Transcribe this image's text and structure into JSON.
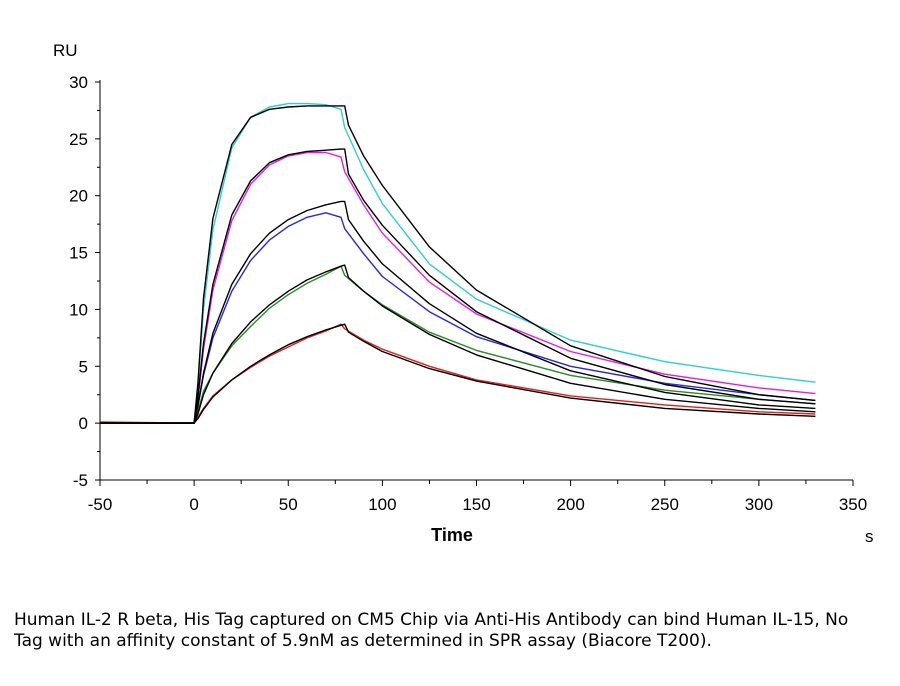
{
  "caption": "Human IL-2 R beta, His Tag captured on CM5 Chip via Anti-His Antibody can bind Human IL-15, No Tag with an affinity constant of 5.9nM as determined in SPR assay (Biacore T200).",
  "chart_data": {
    "type": "line",
    "title": "",
    "xlabel": "Time",
    "xunit": "s",
    "ylabel": "",
    "yunit": "RU",
    "xlim": [
      -50,
      350
    ],
    "ylim": [
      -5,
      30
    ],
    "xticks": [
      -50,
      0,
      50,
      100,
      150,
      200,
      250,
      300,
      350
    ],
    "yticks": [
      -5,
      0,
      5,
      10,
      15,
      20,
      25,
      30
    ],
    "grid": false,
    "legend": "none",
    "series": [
      {
        "color": "#2ccfd2",
        "x": [
          -50,
          0,
          2,
          5,
          10,
          20,
          30,
          40,
          50,
          60,
          70,
          78,
          80,
          90,
          100,
          125,
          150,
          200,
          250,
          300,
          330
        ],
        "y": [
          0,
          0,
          3,
          10,
          17,
          24.2,
          26.9,
          27.8,
          28.1,
          28.1,
          28.0,
          27.6,
          26.0,
          22.3,
          19.3,
          14.0,
          10.9,
          7.3,
          5.4,
          4.2,
          3.6
        ]
      },
      {
        "color": "#e020e0",
        "x": [
          -50,
          0,
          2,
          5,
          10,
          20,
          30,
          40,
          50,
          60,
          70,
          78,
          80,
          90,
          100,
          125,
          150,
          200,
          250,
          300,
          330
        ],
        "y": [
          0,
          0,
          2,
          6.5,
          11.7,
          17.8,
          21.0,
          22.7,
          23.5,
          23.8,
          23.8,
          23.4,
          22.1,
          19.2,
          16.7,
          12.4,
          9.6,
          6.3,
          4.3,
          3.1,
          2.6
        ]
      },
      {
        "color": "#2828e0",
        "x": [
          -50,
          0,
          2,
          5,
          10,
          20,
          30,
          40,
          50,
          60,
          70,
          78,
          80,
          90,
          100,
          125,
          150,
          200,
          250,
          300,
          330
        ],
        "y": [
          0,
          0,
          1.5,
          4.2,
          7.5,
          11.6,
          14.3,
          16.1,
          17.3,
          18.1,
          18.5,
          18.1,
          17.1,
          14.9,
          12.9,
          9.8,
          7.6,
          5.0,
          3.5,
          2.5,
          2.0
        ]
      },
      {
        "color": "#2a8a2a",
        "x": [
          -50,
          0,
          2,
          5,
          10,
          20,
          30,
          40,
          50,
          60,
          70,
          78,
          80,
          90,
          100,
          125,
          150,
          200,
          250,
          300,
          330
        ],
        "y": [
          0,
          0,
          1,
          2.8,
          4.4,
          6.8,
          8.5,
          10.1,
          11.3,
          12.3,
          13.1,
          13.8,
          13.0,
          11.6,
          10.4,
          8.0,
          6.4,
          4.2,
          2.9,
          2.1,
          1.7
        ]
      },
      {
        "color": "#e02020",
        "x": [
          -50,
          0,
          2,
          5,
          10,
          20,
          30,
          40,
          50,
          60,
          70,
          78,
          80,
          90,
          100,
          125,
          150,
          200,
          250,
          300,
          330
        ],
        "y": [
          0.1,
          0,
          0.5,
          1.3,
          2.4,
          3.8,
          4.9,
          5.9,
          6.7,
          7.5,
          8.1,
          8.7,
          8.3,
          7.3,
          6.5,
          5.0,
          3.8,
          2.4,
          1.6,
          1.0,
          0.8
        ]
      },
      {
        "color": "#000000",
        "x": [
          -50,
          0,
          2,
          5,
          10,
          20,
          30,
          40,
          50,
          60,
          70,
          78,
          80,
          82,
          90,
          100,
          125,
          150,
          200,
          250,
          300,
          330
        ],
        "y": [
          0,
          0,
          3.5,
          11,
          18,
          24.5,
          26.9,
          27.6,
          27.8,
          27.9,
          27.9,
          27.9,
          27.9,
          26.2,
          23.5,
          20.9,
          15.5,
          11.7,
          6.8,
          4.1,
          2.5,
          2.0
        ]
      },
      {
        "color": "#000000",
        "x": [
          -50,
          0,
          2,
          5,
          10,
          20,
          30,
          40,
          50,
          60,
          70,
          78,
          80,
          82,
          90,
          100,
          125,
          150,
          200,
          250,
          300,
          330
        ],
        "y": [
          0,
          0,
          2.3,
          7,
          12.2,
          18.3,
          21.3,
          22.9,
          23.6,
          23.9,
          24.0,
          24.1,
          24.1,
          21.9,
          19.6,
          17.4,
          13.0,
          9.8,
          5.7,
          3.4,
          2.1,
          1.7
        ]
      },
      {
        "color": "#000000",
        "x": [
          -50,
          0,
          2,
          5,
          10,
          20,
          30,
          40,
          50,
          60,
          70,
          78,
          80,
          82,
          90,
          100,
          125,
          150,
          200,
          250,
          300,
          330
        ],
        "y": [
          0,
          0,
          1.5,
          4.4,
          7.9,
          12.2,
          14.9,
          16.7,
          17.9,
          18.7,
          19.2,
          19.5,
          19.5,
          17.9,
          16.0,
          14.0,
          10.5,
          7.9,
          4.6,
          2.7,
          1.6,
          1.3
        ]
      },
      {
        "color": "#000000",
        "x": [
          -50,
          0,
          2,
          5,
          10,
          20,
          30,
          40,
          50,
          60,
          70,
          78,
          80,
          82,
          90,
          100,
          125,
          150,
          200,
          250,
          300,
          330
        ],
        "y": [
          0,
          0,
          0.8,
          2.5,
          4.4,
          7.0,
          8.9,
          10.4,
          11.6,
          12.6,
          13.3,
          13.8,
          13.9,
          12.8,
          11.6,
          10.3,
          7.8,
          6.0,
          3.5,
          2.1,
          1.3,
          1.0
        ]
      },
      {
        "color": "#000000",
        "x": [
          -50,
          0,
          2,
          5,
          10,
          20,
          30,
          40,
          50,
          60,
          70,
          78,
          80,
          82,
          90,
          100,
          125,
          150,
          200,
          250,
          300,
          330
        ],
        "y": [
          0,
          0,
          0.4,
          1.2,
          2.3,
          3.8,
          5.0,
          6.0,
          6.9,
          7.6,
          8.2,
          8.6,
          8.7,
          8.0,
          7.2,
          6.3,
          4.8,
          3.7,
          2.2,
          1.3,
          0.8,
          0.6
        ]
      }
    ]
  }
}
